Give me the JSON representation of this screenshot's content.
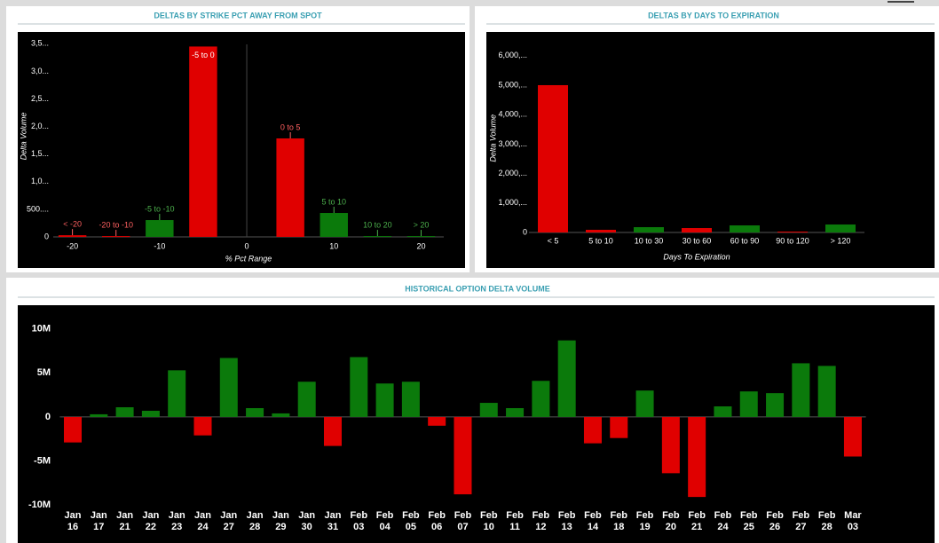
{
  "chart_data": [
    {
      "type": "bar",
      "title": "DELTAS BY STRIKE PCT AWAY FROM SPOT",
      "y_label": "Delta Volume",
      "x_label": "% Pct Range",
      "x": [
        -20,
        -15,
        -10,
        -5,
        5,
        10,
        15,
        20
      ],
      "bar_labels": [
        "< -20",
        "-20 to -10",
        "-5 to -10",
        "-5 to 0",
        "0 to 5",
        "5 to 10",
        "10 to 20",
        "> 20"
      ],
      "values": [
        30,
        15,
        305,
        3450,
        1785,
        434,
        15,
        15
      ],
      "colors": [
        "#e00000",
        "#e00000",
        "#0b7a0b",
        "#e00000",
        "#e00000",
        "#0b7a0b",
        "#0b7a0b",
        "#0b7a0b"
      ],
      "xlim": [
        -22.2,
        22.6
      ],
      "xticks": [
        -20,
        -10,
        0,
        10,
        20
      ],
      "ylim": [
        0,
        3650
      ],
      "yticks": [
        0,
        {
          "value": 500,
          "label": "500...."
        },
        {
          "value": 1000,
          "label": "1,0..."
        },
        {
          "value": 1500,
          "label": "1,5..."
        },
        {
          "value": 2000,
          "label": "2,0..."
        },
        {
          "value": 2500,
          "label": "2,5..."
        },
        {
          "value": 3000,
          "label": "3,0..."
        },
        {
          "value": 3500,
          "label": "3,5..."
        }
      ]
    },
    {
      "type": "bar",
      "title": "DELTAS BY DAYS TO EXPIRATION",
      "y_label": "Delta Volume",
      "x_label": "Days To Expiration",
      "categories": [
        "< 5",
        "5 to 10",
        "10 to 30",
        "30 to 60",
        "60 to 90",
        "90 to 120",
        "> 120"
      ],
      "values": [
        5000,
        90,
        180,
        150,
        240,
        30,
        270
      ],
      "colors": [
        "#e00000",
        "#e00000",
        "#0b7a0b",
        "#e00000",
        "#0b7a0b",
        "#e00000",
        "#0b7a0b"
      ],
      "ylim": [
        0,
        6400
      ],
      "yticks": [
        0,
        {
          "value": 1000,
          "label": "1,000,..."
        },
        {
          "value": 2000,
          "label": "2,000,..."
        },
        {
          "value": 3000,
          "label": "3,000,..."
        },
        {
          "value": 4000,
          "label": "4,000,..."
        },
        {
          "value": 5000,
          "label": "5,000,..."
        },
        {
          "value": 6000,
          "label": "6,000,..."
        }
      ]
    },
    {
      "type": "bar",
      "title": "HISTORICAL OPTION DELTA VOLUME",
      "categories": [
        "Jan 16",
        "Jan 17",
        "Jan 21",
        "Jan 22",
        "Jan 23",
        "Jan 24",
        "Jan 27",
        "Jan 28",
        "Jan 29",
        "Jan 30",
        "Jan 31",
        "Feb 03",
        "Feb 04",
        "Feb 05",
        "Feb 06",
        "Feb 07",
        "Feb 10",
        "Feb 11",
        "Feb 12",
        "Feb 13",
        "Feb 14",
        "Feb 18",
        "Feb 19",
        "Feb 20",
        "Feb 21",
        "Feb 24",
        "Feb 25",
        "Feb 26",
        "Feb 27",
        "Feb 28",
        "Mar 03"
      ],
      "values": [
        -2.9,
        0.3,
        1.1,
        0.7,
        5.3,
        -2.1,
        6.7,
        1.0,
        0.4,
        4.0,
        -3.3,
        6.8,
        3.8,
        4.0,
        -1.0,
        -8.8,
        1.6,
        1.0,
        4.1,
        8.7,
        -3.0,
        -2.4,
        3.0,
        -6.4,
        -9.1,
        1.2,
        2.9,
        2.7,
        6.1,
        5.8,
        -4.5
      ],
      "sign_colors": {
        "positive": "#0b7a0b",
        "negative": "#e00000"
      },
      "ylim": [
        -10.4,
        12.6
      ],
      "yticks": [
        {
          "value": -10,
          "label": "-10M"
        },
        {
          "value": -5,
          "label": "-5M"
        },
        0,
        {
          "value": 5,
          "label": "5M"
        },
        {
          "value": 10,
          "label": "10M"
        }
      ]
    }
  ]
}
